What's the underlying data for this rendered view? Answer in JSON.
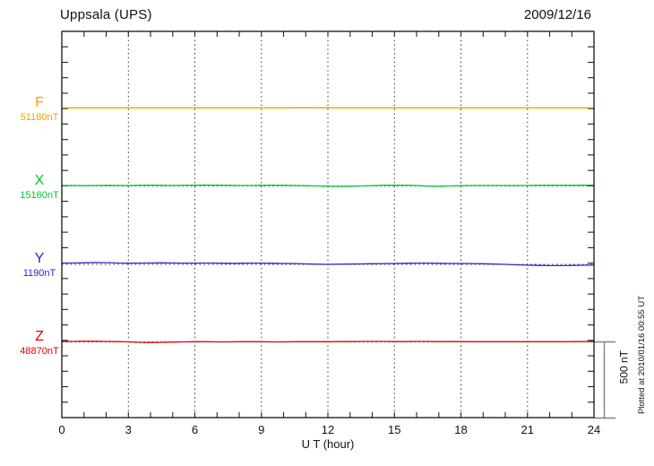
{
  "header": {
    "station_title": "Uppsala (UPS)",
    "date": "2009/12/16"
  },
  "traces": [
    {
      "label": "F",
      "value": "51180nT",
      "color": "#F2A200"
    },
    {
      "label": "X",
      "value": "15160nT",
      "color": "#00C832"
    },
    {
      "label": "Y",
      "value": "1190nT",
      "color": "#2828D2"
    },
    {
      "label": "Z",
      "value": "48870nT",
      "color": "#E10000"
    }
  ],
  "x_axis": {
    "label": "U T (hour)",
    "ticks": [
      0,
      3,
      6,
      9,
      12,
      15,
      18,
      21,
      24
    ]
  },
  "scale_bar": {
    "label": "500 nT",
    "span_nT": 500
  },
  "footer_note": "Plotted at 2010/01/16 00:55 UT",
  "chart_data": {
    "type": "line",
    "title": "Uppsala (UPS) magnetogram",
    "date": "2009/12/16",
    "xlabel": "U T (hour)",
    "x_range_hours": [
      0,
      24
    ],
    "x_tick_interval_hours": 3,
    "x_minor_tick_hours": 1,
    "x_step_hours": 0.5,
    "y_tick_interval_nT": 100,
    "scale_bar_nT": 500,
    "grid": "vertical dotted every 3 h, dotted baseline per trace",
    "series": [
      {
        "name": "F",
        "baseline_nT": 51180,
        "color": "#F2A200",
        "offsets_nT": [
          1,
          1,
          1,
          1,
          1,
          1,
          1,
          1,
          1,
          1,
          1,
          1,
          1,
          1,
          1,
          1,
          1,
          1,
          1,
          1,
          1,
          2,
          2,
          2,
          1,
          1,
          1,
          1,
          1,
          1,
          1,
          1,
          1,
          1,
          1,
          1,
          1,
          1,
          1,
          1,
          1,
          1,
          1,
          1,
          1,
          1,
          1,
          1,
          1
        ]
      },
      {
        "name": "X",
        "baseline_nT": 15160,
        "color": "#00C832",
        "offsets_nT": [
          3,
          3,
          2,
          3,
          4,
          3,
          3,
          4,
          5,
          4,
          3,
          4,
          5,
          6,
          5,
          4,
          3,
          3,
          4,
          5,
          4,
          3,
          2,
          0,
          -2,
          -3,
          -2,
          0,
          2,
          4,
          5,
          4,
          3,
          -1,
          -3,
          0,
          2,
          3,
          3,
          3,
          3,
          3,
          3,
          4,
          4,
          4,
          4,
          5,
          6
        ]
      },
      {
        "name": "Y",
        "baseline_nT": 1190,
        "color": "#2828D2",
        "offsets_nT": [
          8,
          9,
          10,
          12,
          11,
          9,
          8,
          8,
          9,
          10,
          9,
          8,
          8,
          9,
          8,
          7,
          7,
          8,
          8,
          7,
          6,
          5,
          3,
          1,
          0,
          1,
          2,
          3,
          4,
          5,
          6,
          7,
          8,
          8,
          7,
          6,
          6,
          5,
          4,
          2,
          0,
          -3,
          -5,
          -7,
          -8,
          -8,
          -7,
          -6,
          -4
        ]
      },
      {
        "name": "Z",
        "baseline_nT": 48870,
        "color": "#E10000",
        "offsets_nT": [
          2,
          3,
          4,
          4,
          3,
          2,
          0,
          -3,
          -4,
          -3,
          -1,
          0,
          1,
          1,
          0,
          0,
          1,
          1,
          1,
          0,
          0,
          1,
          1,
          1,
          1,
          2,
          2,
          3,
          3,
          3,
          2,
          2,
          3,
          3,
          2,
          2,
          2,
          1,
          1,
          1,
          1,
          1,
          1,
          1,
          1,
          1,
          2,
          2,
          2
        ]
      }
    ]
  }
}
